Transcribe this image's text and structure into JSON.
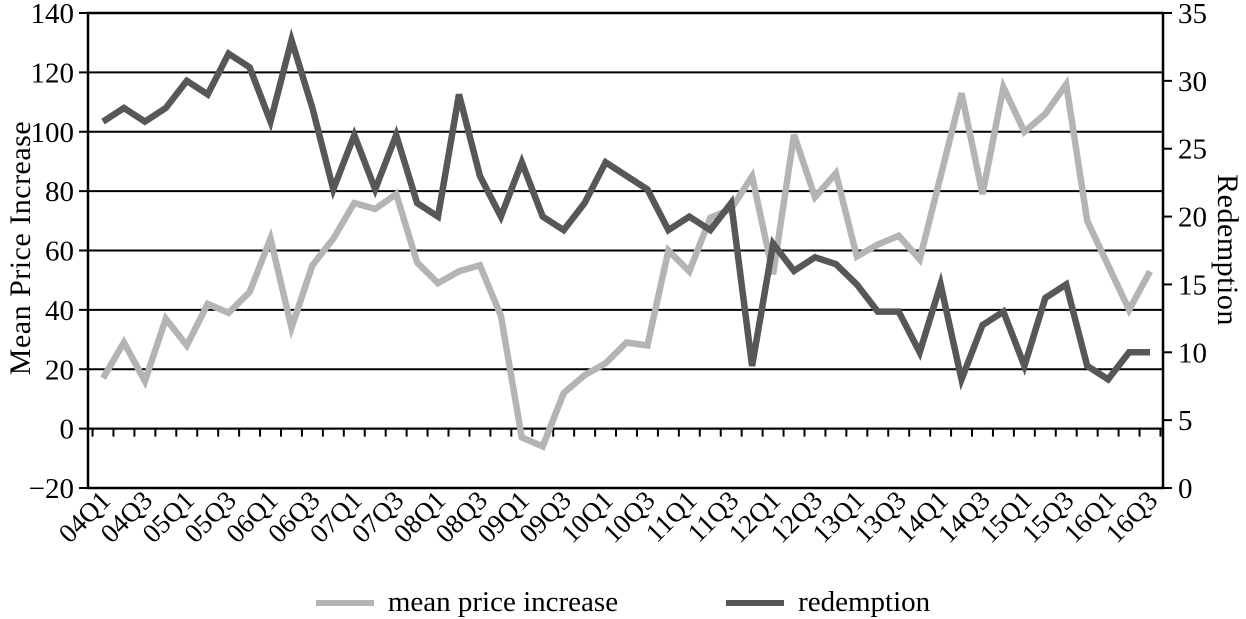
{
  "figure": {
    "background": "#ffffff",
    "left_axis": {
      "title": "Mean Price Increase",
      "min": -20,
      "max": 140,
      "step": 20,
      "tick_labels": [
        "140",
        "120",
        "100",
        "80",
        "60",
        "40",
        "20",
        "0",
        "−20"
      ]
    },
    "right_axis": {
      "title": "Redemption",
      "min": 0,
      "max": 35,
      "step": 5,
      "tick_labels": [
        "35",
        "30",
        "25",
        "20",
        "15",
        "10",
        "5",
        "0"
      ]
    },
    "grid_color": "#000000",
    "label_every": 2
  },
  "chart_data": {
    "type": "line",
    "title": "",
    "xlabel": "",
    "grid": true,
    "legend_position": "bottom",
    "left_ylim": [
      -20,
      140
    ],
    "right_ylim": [
      0,
      35
    ],
    "categories": [
      "04Q1",
      "04Q2",
      "04Q3",
      "04Q4",
      "05Q1",
      "05Q2",
      "05Q3",
      "05Q4",
      "06Q1",
      "06Q2",
      "06Q3",
      "06Q4",
      "07Q1",
      "07Q2",
      "07Q3",
      "07Q4",
      "08Q1",
      "08Q2",
      "08Q3",
      "08Q4",
      "09Q1",
      "09Q2",
      "09Q3",
      "09Q4",
      "10Q1",
      "10Q2",
      "10Q3",
      "10Q4",
      "11Q1",
      "11Q2",
      "11Q3",
      "11Q4",
      "12Q1",
      "12Q2",
      "12Q3",
      "12Q4",
      "13Q1",
      "13Q2",
      "13Q3",
      "13Q4",
      "14Q1",
      "14Q2",
      "14Q3",
      "14Q4",
      "15Q1",
      "15Q2",
      "15Q3",
      "15Q4",
      "16Q1",
      "16Q2",
      "16Q3"
    ],
    "x_tick_labels_shown": [
      "04Q1",
      "04Q3",
      "05Q1",
      "05Q3",
      "06Q1",
      "06Q3",
      "07Q1",
      "07Q3",
      "08Q1",
      "08Q3",
      "09Q1",
      "09Q3",
      "10Q1",
      "10Q3",
      "11Q1",
      "11Q3",
      "12Q1",
      "12Q3",
      "13Q1",
      "13Q3",
      "14Q1",
      "14Q3",
      "15Q1",
      "15Q3",
      "16Q1",
      "16Q3"
    ],
    "series": [
      {
        "name": "mean price increase",
        "axis": "left",
        "color": "#b4b4b4",
        "values": [
          17,
          29,
          16,
          37,
          28,
          42,
          39,
          46,
          64,
          34,
          55,
          64,
          76,
          74,
          79,
          56,
          49,
          53,
          55,
          38,
          -3,
          -6,
          12,
          18,
          22,
          29,
          28,
          60,
          53,
          71,
          74,
          85,
          52,
          99,
          78,
          86,
          58,
          62,
          65,
          57,
          85,
          113,
          79,
          115,
          100,
          106,
          116,
          70,
          55,
          40,
          53
        ]
      },
      {
        "name": "redemption",
        "axis": "right",
        "color": "#575757",
        "values": [
          27,
          28,
          27,
          28,
          30,
          29,
          32,
          31,
          27,
          33,
          28,
          22,
          26,
          22,
          26,
          21,
          20,
          29,
          23,
          20,
          24,
          20,
          19,
          21,
          24,
          23,
          22,
          19,
          20,
          19,
          21,
          9,
          18,
          16,
          17,
          16.5,
          15,
          13,
          13,
          10,
          15,
          8,
          12,
          13,
          9,
          14,
          15,
          9,
          8,
          10,
          10
        ]
      }
    ]
  }
}
